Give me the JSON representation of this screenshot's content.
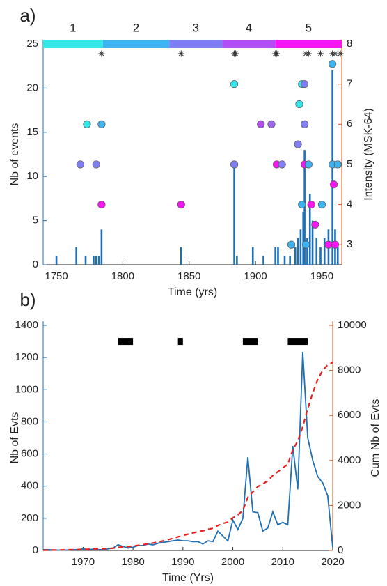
{
  "chart_data": [
    {
      "type": "bar",
      "title": "a)",
      "xlabel": "Time (yrs)",
      "ylabel": "Nb of events",
      "y2label": "Intensity (MSK-64)",
      "ycolor": "#1f72b8",
      "y2color": "#d95319",
      "xlim": [
        1740,
        1965
      ],
      "xticks": [
        1750,
        1800,
        1850,
        1900,
        1950
      ],
      "ylim": [
        0,
        25
      ],
      "yticks": [
        0,
        5,
        10,
        15,
        20,
        25
      ],
      "y2lim": [
        2.5,
        8
      ],
      "y2ticks": [
        3,
        4,
        5,
        6,
        7,
        8
      ],
      "periods": [
        {
          "label": "1",
          "start": 1740,
          "end": 1785,
          "color": "#33e6ea"
        },
        {
          "label": "2",
          "start": 1785,
          "end": 1835,
          "color": "#3fb2f0"
        },
        {
          "label": "3",
          "start": 1835,
          "end": 1875,
          "color": "#7f7ef2"
        },
        {
          "label": "4",
          "start": 1875,
          "end": 1915,
          "color": "#b24ff2"
        },
        {
          "label": "5",
          "start": 1915,
          "end": 1965,
          "color": "#f516f2"
        }
      ],
      "asterisks": [
        1784,
        1844,
        1884,
        1885,
        1915,
        1916,
        1938,
        1940,
        1949,
        1958,
        1960,
        1964
      ],
      "bars": {
        "color": "#1f6fb5",
        "x": [
          1750,
          1765,
          1772,
          1778,
          1780,
          1782,
          1784,
          1844,
          1884,
          1886,
          1898,
          1906,
          1915,
          1917,
          1922,
          1926,
          1930,
          1932,
          1934,
          1936,
          1937,
          1939,
          1941,
          1943,
          1946,
          1949,
          1952,
          1955,
          1958,
          1960,
          1962
        ],
        "values": [
          1,
          2,
          1,
          1,
          1,
          1,
          4,
          2,
          11,
          1,
          2,
          1,
          2,
          2,
          1,
          1,
          2,
          3,
          4,
          6,
          13,
          3,
          8,
          5,
          3,
          2,
          3,
          4,
          22,
          4,
          2
        ]
      },
      "points": {
        "axis": "y2",
        "x": [
          1768,
          1773,
          1780,
          1784,
          1784,
          1844,
          1884,
          1884,
          1904,
          1912,
          1916,
          1920,
          1927,
          1932,
          1933,
          1935,
          1937,
          1937,
          1937,
          1938,
          1935,
          1940,
          1942,
          1945,
          1950,
          1955,
          1958,
          1958,
          1959,
          1960,
          1962
        ],
        "values": [
          5,
          6,
          5,
          6,
          4,
          4,
          7,
          5,
          6,
          6,
          5,
          5,
          3,
          5.5,
          6.5,
          7,
          7,
          6,
          5,
          3,
          4,
          5,
          4,
          3.5,
          4,
          3,
          7.5,
          5,
          4.5,
          3,
          5
        ],
        "colors": [
          "#7f7ef2",
          "#33e6ea",
          "#7f7ef2",
          "#3fb2f0",
          "#f516f2",
          "#f516f2",
          "#33e6ea",
          "#7f7ef2",
          "#b24ff2",
          "#9a66e6",
          "#f516f2",
          "#7f7ef2",
          "#3fb2f0",
          "#7f7ef2",
          "#33e6ea",
          "#33e6ea",
          "#7f7ef2",
          "#7f7ef2",
          "#f516f2",
          "#3fb2f0",
          "#3fb2f0",
          "#3fb2f0",
          "#f516f2",
          "#f516f2",
          "#3fb2f0",
          "#f516f2",
          "#3fb2f0",
          "#3fb2f0",
          "#f516f2",
          "#f516f2",
          "#3fb2f0"
        ]
      }
    },
    {
      "type": "line",
      "title": "b)",
      "xlabel": "Time (Yrs)",
      "ylabel": "Nb of Evts",
      "y2label": "Cum Nb of Evts",
      "ycolor": "#1f72b8",
      "y2color": "#d95319",
      "xlim": [
        1962,
        2020
      ],
      "xticks": [
        1970,
        1980,
        1990,
        2000,
        2010,
        2020
      ],
      "ylim": [
        0,
        1400
      ],
      "yticks": [
        0,
        200,
        400,
        600,
        800,
        1000,
        1200,
        1400
      ],
      "y2lim": [
        0,
        10000
      ],
      "y2ticks": [
        0,
        2000,
        4000,
        6000,
        8000,
        10000
      ],
      "x": [
        1962,
        1963,
        1964,
        1965,
        1966,
        1967,
        1968,
        1969,
        1970,
        1971,
        1972,
        1973,
        1974,
        1975,
        1976,
        1977,
        1978,
        1979,
        1980,
        1981,
        1982,
        1983,
        1984,
        1985,
        1986,
        1987,
        1988,
        1989,
        1990,
        1991,
        1992,
        1993,
        1994,
        1995,
        1996,
        1997,
        1998,
        1999,
        2000,
        2001,
        2002,
        2003,
        2004,
        2005,
        2006,
        2007,
        2008,
        2009,
        2010,
        2011,
        2012,
        2013,
        2014,
        2015,
        2016,
        2017,
        2018,
        2019,
        2020
      ],
      "series": [
        {
          "color": "#1f6fb5",
          "values": [
            5,
            5,
            3,
            2,
            2,
            3,
            5,
            5,
            10,
            5,
            8,
            5,
            5,
            10,
            15,
            35,
            25,
            15,
            20,
            30,
            30,
            40,
            35,
            45,
            50,
            55,
            60,
            65,
            60,
            60,
            55,
            55,
            40,
            60,
            55,
            120,
            90,
            60,
            190,
            130,
            200,
            580,
            240,
            235,
            120,
            140,
            240,
            160,
            175,
            160,
            650,
            380,
            1235,
            700,
            560,
            460,
            420,
            340,
            20
          ]
        },
        {
          "color": "#e8231e",
          "axis": "y2",
          "dashed": true,
          "values": [
            10,
            15,
            20,
            20,
            25,
            30,
            35,
            40,
            50,
            55,
            65,
            70,
            75,
            85,
            100,
            135,
            160,
            175,
            195,
            225,
            255,
            295,
            330,
            375,
            425,
            480,
            540,
            605,
            665,
            725,
            780,
            835,
            875,
            935,
            990,
            1110,
            1200,
            1260,
            1450,
            1580,
            1780,
            2360,
            2600,
            2835,
            2955,
            3095,
            3335,
            3495,
            3670,
            3830,
            4480,
            4860,
            5500,
            6300,
            7000,
            7600,
            8000,
            8250,
            8350
          ]
        }
      ],
      "blocks": {
        "y": 1300,
        "color": "#000000",
        "spans": [
          [
            1977,
            1980
          ],
          [
            1989,
            1990
          ],
          [
            2002,
            2005
          ],
          [
            2011,
            2015
          ]
        ]
      }
    }
  ]
}
